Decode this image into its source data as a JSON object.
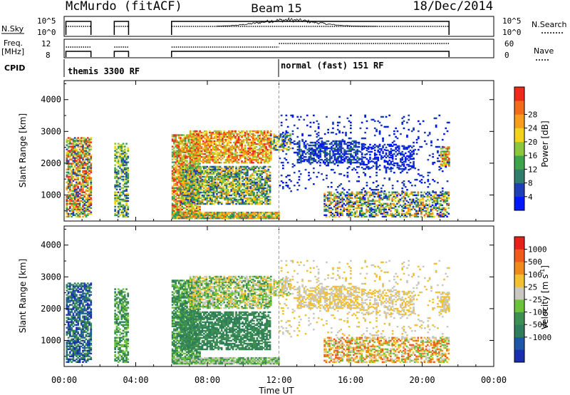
{
  "header": {
    "station": "McMurdo (fitACF)",
    "beam": "Beam 15",
    "date": "18/Dec/2014"
  },
  "panels": {
    "nsky": {
      "left_label": "N.Sky",
      "right_label": "N.Search",
      "left_ticks": [
        "10^5",
        "10^0"
      ],
      "right_ticks": [
        "10^5",
        "10^0"
      ]
    },
    "freq": {
      "left_label_1": "Freq.",
      "left_label_2": "[MHz]",
      "right_label": "Nave",
      "left_ticks": [
        "12",
        "8"
      ],
      "right_ticks": [
        "60",
        "0"
      ]
    },
    "cpid": {
      "label": "CPID",
      "modes": [
        {
          "name": "themis 3300 RF",
          "start_hour": 0
        },
        {
          "name": "normal (fast) 151 RF",
          "start_hour": 12
        }
      ]
    }
  },
  "chart_data": [
    {
      "type": "heatmap",
      "name": "Power",
      "ylabel": "Slant Range [km]",
      "xlabel": "Time UT",
      "x_ticks": [
        "00:00",
        "04:00",
        "08:00",
        "12:00",
        "16:00",
        "20:00",
        "00:00"
      ],
      "x_tick_hours": [
        0,
        4,
        8,
        12,
        16,
        20,
        24
      ],
      "y_ticks": [
        1000,
        2000,
        3000,
        4000
      ],
      "ylim": [
        180,
        4600
      ],
      "xlim": [
        0,
        24
      ],
      "colorbar": {
        "label": "Power [dB]",
        "ticks": [
          "4",
          "8",
          "12",
          "16",
          "20",
          "24",
          "28"
        ],
        "colors": [
          "#0018ff",
          "#1f3fb4",
          "#2f7d6a",
          "#3ea44c",
          "#8cc63f",
          "#f2d21b",
          "#f59e1b",
          "#f26b1b",
          "#ef2a1b"
        ]
      },
      "data_windows_hours": [
        [
          0.1,
          1.5
        ],
        [
          2.8,
          3.6
        ],
        [
          6.0,
          21.5
        ]
      ]
    },
    {
      "type": "heatmap",
      "name": "Velocity",
      "ylabel": "Slant Range [km]",
      "xlabel": "Time UT",
      "x_ticks": [
        "00:00",
        "04:00",
        "08:00",
        "12:00",
        "16:00",
        "20:00",
        "00:00"
      ],
      "x_tick_hours": [
        0,
        4,
        8,
        12,
        16,
        20,
        24
      ],
      "y_ticks": [
        1000,
        2000,
        3000,
        4000
      ],
      "ylim": [
        180,
        4600
      ],
      "xlim": [
        0,
        24
      ],
      "colorbar": {
        "label": "Velocity [m s^-1]",
        "ticks": [
          "1000",
          "500",
          "100",
          "25",
          "-25",
          "-100",
          "-500",
          "-1000"
        ],
        "colors": [
          "#1a2fb0",
          "#1f57a8",
          "#2f7d5a",
          "#3e8f52",
          "#6cc23a",
          "#c8c8c0",
          "#f2c030",
          "#f08a1c",
          "#f05a1c",
          "#e8201a"
        ]
      },
      "data_windows_hours": [
        [
          0.1,
          1.5
        ],
        [
          2.8,
          3.6
        ],
        [
          6.0,
          21.5
        ]
      ]
    }
  ],
  "axis_text": {
    "xlabel": "Time UT",
    "ylabel": "Slant Range [km]",
    "power_label": "Power [dB]",
    "velocity_label": "Velocity [m s"
  }
}
